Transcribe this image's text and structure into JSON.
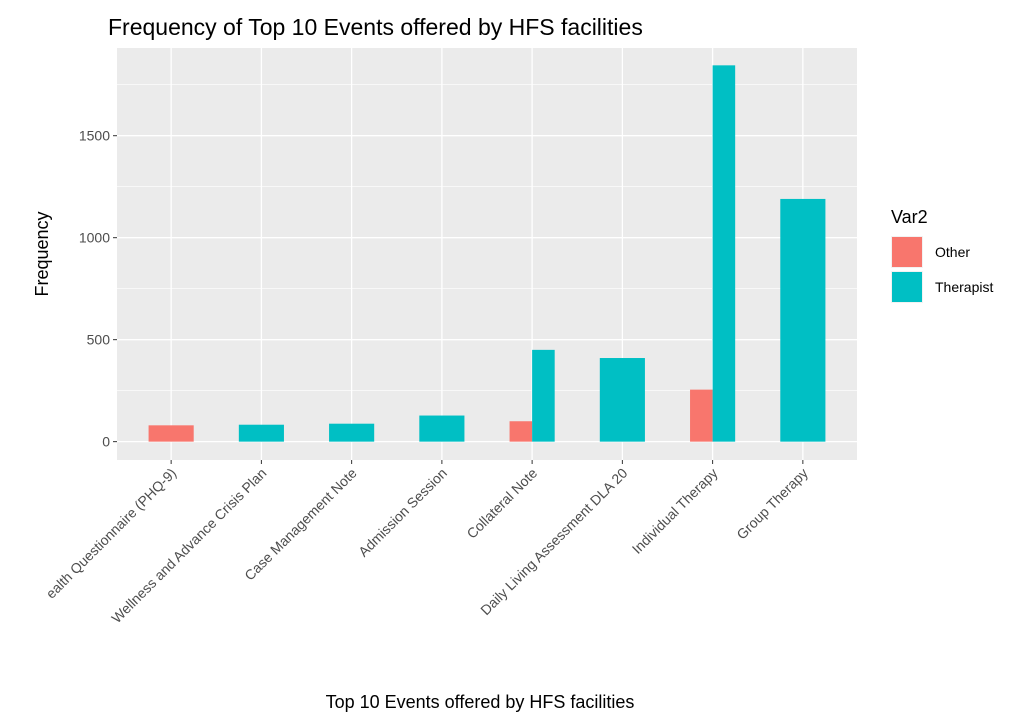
{
  "chart_data": {
    "type": "bar",
    "title": "Frequency of Top 10 Events offered by HFS facilities",
    "xlabel": "Top 10 Events offered by HFS facilities",
    "ylabel": "Frequency",
    "categories": [
      "ealth Questionnaire (PHQ-9)",
      "Wellness and Advance Crisis Plan",
      "Case Management Note",
      "Admission Session",
      "Collateral Note",
      "Daily Living Assessment DLA 20",
      "Individual Therapy",
      "Group Therapy"
    ],
    "series": [
      {
        "name": "Other",
        "color": "#F8766D",
        "values": [
          80,
          null,
          null,
          null,
          100,
          null,
          255,
          null
        ]
      },
      {
        "name": "Therapist",
        "color": "#00BFC4",
        "values": [
          null,
          83,
          88,
          128,
          450,
          410,
          1845,
          1190
        ]
      }
    ],
    "yticks": [
      0,
      500,
      1000,
      1500
    ],
    "ytick_labels": [
      "0",
      "500",
      "1000",
      "1500"
    ],
    "ylim": [
      -90,
      1930
    ],
    "legend": {
      "title": "Var2",
      "position": "right"
    },
    "grid": true,
    "background": "#EBEBEB"
  }
}
